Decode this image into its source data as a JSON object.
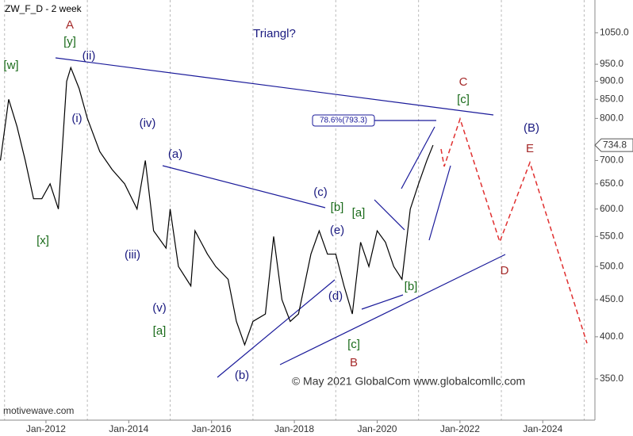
{
  "chart_data": {
    "type": "line",
    "title": "ZW_F_D - 2 week",
    "subtitle": "Triangl?",
    "footer": "motivewave.com",
    "copyright": "© May 2021 GlobalCom www.globalcomllc.com",
    "log_scale": true,
    "grid": true,
    "xlim": [
      2010.89,
      2025.26
    ],
    "ylim": [
      307,
      1165
    ],
    "xticks": [
      {
        "value": 2012,
        "label": "Jan-2012"
      },
      {
        "value": 2014,
        "label": "Jan-2014"
      },
      {
        "value": 2016,
        "label": "Jan-2016"
      },
      {
        "value": 2018,
        "label": "Jan-2018"
      },
      {
        "value": 2020,
        "label": "Jan-2020"
      },
      {
        "value": 2022,
        "label": "Jan-2022"
      },
      {
        "value": 2024,
        "label": "Jan-2024"
      }
    ],
    "xgrid": [
      2011,
      2013,
      2015,
      2017,
      2019,
      2021,
      2023,
      2025
    ],
    "yticks": [
      {
        "value": 1050,
        "label": "1050.0"
      },
      {
        "value": 950,
        "label": "950.0"
      },
      {
        "value": 900,
        "label": "900.0"
      },
      {
        "value": 850,
        "label": "850.0"
      },
      {
        "value": 800,
        "label": "800.0"
      },
      {
        "value": 700,
        "label": "700.0"
      },
      {
        "value": 650,
        "label": "650.0"
      },
      {
        "value": 600,
        "label": "600.0"
      },
      {
        "value": 550,
        "label": "550.0"
      },
      {
        "value": 500,
        "label": "500.0"
      },
      {
        "value": 450,
        "label": "450.0"
      },
      {
        "value": 400,
        "label": "400.0"
      },
      {
        "value": 350,
        "label": "350.0"
      }
    ],
    "last_price": {
      "value": 734.8,
      "label": "734.8"
    },
    "fib_label": "78.6%(793.3)",
    "series": [
      {
        "name": "ZW_F_D",
        "color": "#000000",
        "x": [
          2010.9,
          2011.1,
          2011.3,
          2011.5,
          2011.7,
          2011.9,
          2012.1,
          2012.3,
          2012.5,
          2012.6,
          2012.8,
          2013.0,
          2013.3,
          2013.6,
          2013.9,
          2014.2,
          2014.4,
          2014.6,
          2014.9,
          2015.0,
          2015.2,
          2015.5,
          2015.6,
          2015.9,
          2016.1,
          2016.4,
          2016.6,
          2016.8,
          2017.0,
          2017.3,
          2017.5,
          2017.7,
          2017.9,
          2018.1,
          2018.4,
          2018.6,
          2018.8,
          2019.0,
          2019.2,
          2019.4,
          2019.6,
          2019.8,
          2020.0,
          2020.2,
          2020.4,
          2020.6,
          2020.8,
          2021.0,
          2021.2,
          2021.35
        ],
        "values": [
          700,
          850,
          780,
          700,
          620,
          620,
          650,
          600,
          900,
          940,
          880,
          800,
          720,
          680,
          650,
          600,
          700,
          560,
          530,
          600,
          500,
          470,
          560,
          520,
          500,
          480,
          420,
          390,
          420,
          430,
          550,
          450,
          420,
          430,
          520,
          560,
          520,
          520,
          470,
          430,
          540,
          500,
          560,
          540,
          500,
          480,
          600,
          650,
          700,
          735
        ]
      }
    ],
    "annotations": [
      {
        "text": "A",
        "color": "#a52a2a"
      },
      {
        "text": "[y]",
        "color": "#1a6b1a"
      },
      {
        "text": "(ii)",
        "color": "#1a1a80"
      },
      {
        "text": "[w]",
        "color": "#1a6b1a"
      },
      {
        "text": "(i)",
        "color": "#1a1a80"
      },
      {
        "text": "(iv)",
        "color": "#1a1a80"
      },
      {
        "text": "(a)",
        "color": "#1a1a80"
      },
      {
        "text": "(iii)",
        "color": "#1a1a80"
      },
      {
        "text": "[x]",
        "color": "#1a6b1a"
      },
      {
        "text": "(v)",
        "color": "#1a1a80"
      },
      {
        "text": "[a]",
        "color": "#1a6b1a"
      },
      {
        "text": "(b)",
        "color": "#1a1a80"
      },
      {
        "text": "(c)",
        "color": "#1a1a80"
      },
      {
        "text": "[b]",
        "color": "#1a6b1a"
      },
      {
        "text": "[a]",
        "color": "#1a6b1a"
      },
      {
        "text": "(e)",
        "color": "#1a1a80"
      },
      {
        "text": "(d)",
        "color": "#1a1a80"
      },
      {
        "text": "[c]",
        "color": "#1a6b1a"
      },
      {
        "text": "B",
        "color": "#a52a2a"
      },
      {
        "text": "[b]",
        "color": "#1a6b1a"
      },
      {
        "text": "C",
        "color": "#a52a2a"
      },
      {
        "text": "[c]",
        "color": "#1a6b1a"
      },
      {
        "text": "(B)",
        "color": "#1a1a80"
      },
      {
        "text": "E",
        "color": "#a52a2a"
      },
      {
        "text": "D",
        "color": "#a52a2a"
      }
    ]
  }
}
